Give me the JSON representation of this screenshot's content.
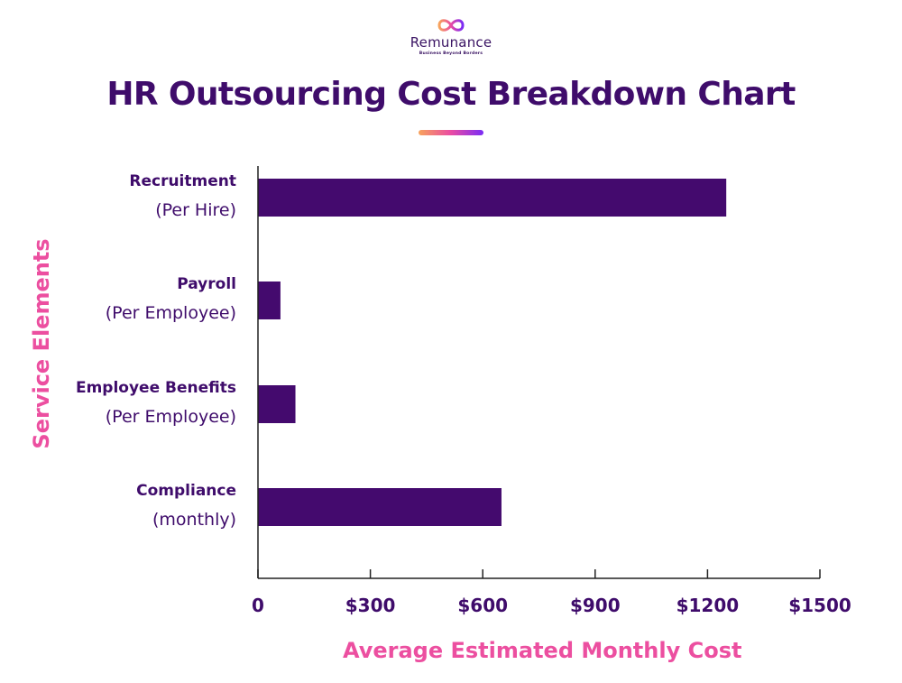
{
  "brand": {
    "name": "Remunance",
    "tagline": "Business Beyond Borders"
  },
  "page_title": "HR Outsourcing Cost Breakdown Chart",
  "colors": {
    "bar": "#440a6e",
    "title": "#3f0c6b",
    "axis_title": "#ec4fa0",
    "axis_line": "#222222"
  },
  "chart_data": {
    "type": "bar",
    "orientation": "horizontal",
    "title": "HR Outsourcing Cost Breakdown Chart",
    "xlabel": "Average Estimated Monthly Cost",
    "ylabel": "Service Elements",
    "xlim": [
      0,
      1500
    ],
    "xticks": [
      0,
      300,
      600,
      900,
      1200,
      1500
    ],
    "xtick_labels": [
      "0",
      "$300",
      "$600",
      "$900",
      "$1200",
      "$1500"
    ],
    "grid": false,
    "categories": [
      {
        "label": "Recruitment",
        "sublabel": "(Per Hire)"
      },
      {
        "label": "Payroll",
        "sublabel": "(Per Employee)"
      },
      {
        "label": "Employee Benefits",
        "sublabel": "(Per Employee)"
      },
      {
        "label": "Compliance",
        "sublabel": "(monthly)"
      }
    ],
    "values": [
      1250,
      60,
      100,
      650
    ]
  }
}
